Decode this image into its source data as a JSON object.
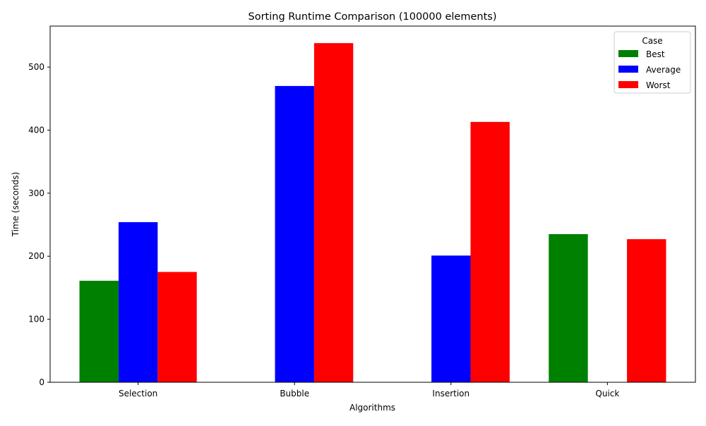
{
  "chart_data": {
    "type": "bar",
    "title": "Sorting Runtime Comparison (100000 elements)",
    "xlabel": "Algorithms",
    "ylabel": "Time (seconds)",
    "categories": [
      "Selection",
      "Bubble",
      "Insertion",
      "Quick"
    ],
    "series": [
      {
        "name": "Best",
        "color": "#008000",
        "values": [
          161,
          0,
          0,
          235
        ]
      },
      {
        "name": "Average",
        "color": "#0000ff",
        "values": [
          254,
          470,
          201,
          0
        ]
      },
      {
        "name": "Worst",
        "color": "#ff0000",
        "values": [
          175,
          538,
          413,
          227
        ]
      }
    ],
    "ylim": [
      0,
      565
    ],
    "yticks": [
      0,
      100,
      200,
      300,
      400,
      500
    ],
    "grid": false,
    "legend": {
      "title": "Case",
      "position": "top-right"
    }
  }
}
